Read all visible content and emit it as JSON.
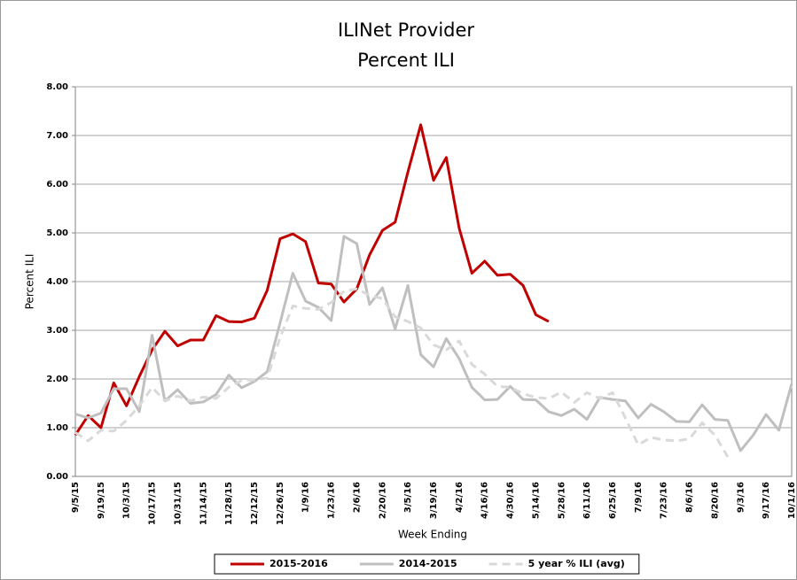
{
  "chart_data": {
    "type": "line",
    "title": "ILINet Provider",
    "subtitle": "Percent ILI",
    "x_label": "Week Ending",
    "y_label": "Percent ILI",
    "categories": [
      "9/5/15",
      null,
      "9/19/15",
      null,
      "10/3/15",
      null,
      "10/17/15",
      null,
      "10/31/15",
      null,
      "11/14/15",
      null,
      "11/28/15",
      null,
      "12/12/15",
      null,
      "12/26/15",
      null,
      "1/9/16",
      null,
      "1/23/16",
      null,
      "2/6/16",
      null,
      "2/20/16",
      null,
      "3/5/16",
      null,
      "3/19/16",
      null,
      "4/2/16",
      null,
      "4/16/16",
      null,
      "4/30/16",
      null,
      "5/14/16",
      null,
      "5/28/16",
      null,
      "6/11/16",
      null,
      "6/25/16",
      null,
      "7/9/16",
      null,
      "7/23/16",
      null,
      "8/6/16",
      null,
      "8/20/16",
      null,
      "9/3/16",
      null,
      "9/17/16",
      null,
      "10/1/16"
    ],
    "series": [
      {
        "name": "2015-2016",
        "color": "#c00000",
        "width": 3,
        "style": "solid",
        "values": [
          0.85,
          1.25,
          1.0,
          1.92,
          1.45,
          2.05,
          2.6,
          2.98,
          2.68,
          2.8,
          2.8,
          3.3,
          3.18,
          3.17,
          3.25,
          3.82,
          4.88,
          4.98,
          4.82,
          3.97,
          3.95,
          3.58,
          3.85,
          4.55,
          5.05,
          5.22,
          6.25,
          7.22,
          6.08,
          6.55,
          5.1,
          4.17,
          4.42,
          4.13,
          4.15,
          3.92,
          3.32,
          3.18,
          null,
          null,
          null,
          null,
          null,
          null,
          null,
          null,
          null,
          null,
          null,
          null,
          null,
          null,
          null,
          null,
          null,
          null,
          null
        ]
      },
      {
        "name": "2014-2015",
        "color": "#bfbfbf",
        "width": 3,
        "style": "solid",
        "values": [
          1.28,
          1.2,
          1.3,
          1.8,
          1.8,
          1.33,
          2.9,
          1.55,
          1.78,
          1.5,
          1.53,
          1.68,
          2.08,
          1.82,
          1.95,
          2.15,
          3.15,
          4.17,
          3.6,
          3.47,
          3.2,
          4.93,
          4.78,
          3.53,
          3.87,
          3.03,
          3.92,
          2.5,
          2.25,
          2.83,
          2.42,
          1.83,
          1.57,
          1.58,
          1.85,
          1.58,
          1.57,
          1.33,
          1.25,
          1.38,
          1.17,
          1.62,
          1.58,
          1.55,
          1.2,
          1.48,
          1.33,
          1.13,
          1.12,
          1.47,
          1.17,
          1.15,
          0.53,
          0.85,
          1.27,
          0.95,
          1.9
        ]
      },
      {
        "name": "5 year % ILI (avg)",
        "color": "#d9d9d9",
        "width": 3,
        "style": "dashed",
        "values": [
          0.9,
          0.73,
          0.95,
          0.93,
          1.15,
          1.45,
          1.83,
          1.55,
          1.65,
          1.55,
          1.63,
          1.6,
          1.83,
          1.97,
          1.98,
          2.02,
          2.85,
          3.5,
          3.45,
          3.43,
          3.57,
          3.8,
          3.85,
          3.72,
          3.65,
          3.28,
          3.18,
          3.05,
          2.7,
          2.6,
          2.78,
          2.3,
          2.1,
          1.85,
          1.83,
          1.7,
          1.62,
          1.6,
          1.73,
          1.52,
          1.72,
          1.6,
          1.72,
          1.2,
          0.65,
          0.8,
          0.75,
          0.73,
          0.77,
          1.1,
          0.85,
          0.4,
          null,
          null,
          null,
          null,
          null
        ]
      }
    ],
    "ylim": [
      0,
      8
    ],
    "yticks": [
      {
        "value": 0,
        "label": "0.00"
      },
      {
        "value": 1,
        "label": "1.00"
      },
      {
        "value": 2,
        "label": "2.00"
      },
      {
        "value": 3,
        "label": "3.00"
      },
      {
        "value": 4,
        "label": "4.00"
      },
      {
        "value": 5,
        "label": "5.00"
      },
      {
        "value": 6,
        "label": "6.00"
      },
      {
        "value": 7,
        "label": "7.00"
      },
      {
        "value": 8,
        "label": "8.00"
      }
    ],
    "grid": true,
    "legend": "bottom"
  }
}
